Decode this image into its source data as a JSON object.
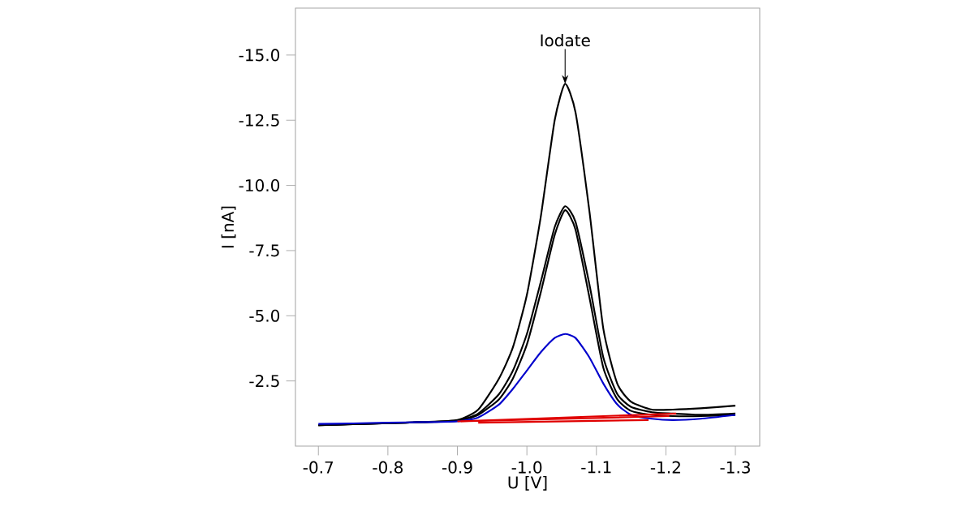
{
  "chart_data": {
    "type": "line",
    "xlabel": "U [V]",
    "ylabel": "I [nA]",
    "annotations": [
      {
        "text": "Iodate",
        "x": -1.055,
        "y": -13.9
      }
    ],
    "x": [
      -0.7,
      -0.75,
      -0.8,
      -0.85,
      -0.9,
      -0.93,
      -0.96,
      -0.98,
      -1.0,
      -1.02,
      -1.04,
      -1.055,
      -1.07,
      -1.09,
      -1.11,
      -1.13,
      -1.15,
      -1.18,
      -1.21,
      -1.25,
      -1.3
    ],
    "series": [
      {
        "color": "#000000",
        "values": [
          -0.8,
          -0.85,
          -0.88,
          -0.92,
          -1.0,
          -1.4,
          -2.6,
          -3.8,
          -5.8,
          -8.8,
          -12.5,
          -13.9,
          -12.8,
          -9.0,
          -4.5,
          -2.4,
          -1.7,
          -1.4,
          -1.4,
          -1.45,
          -1.55
        ]
      },
      {
        "color": "#000000",
        "values": [
          -0.8,
          -0.84,
          -0.88,
          -0.92,
          -0.98,
          -1.25,
          -2.0,
          -2.9,
          -4.3,
          -6.3,
          -8.4,
          -9.2,
          -8.6,
          -6.2,
          -3.4,
          -2.0,
          -1.5,
          -1.3,
          -1.25,
          -1.2,
          -1.25
        ]
      },
      {
        "color": "#000000",
        "values": [
          -0.8,
          -0.84,
          -0.88,
          -0.92,
          -0.97,
          -1.2,
          -1.8,
          -2.6,
          -3.9,
          -5.9,
          -8.1,
          -9.05,
          -8.3,
          -5.7,
          -3.0,
          -1.8,
          -1.35,
          -1.2,
          -1.15,
          -1.15,
          -1.2
        ]
      },
      {
        "color": "#0000cc",
        "values": [
          -0.85,
          -0.87,
          -0.9,
          -0.92,
          -0.95,
          -1.1,
          -1.6,
          -2.2,
          -2.9,
          -3.6,
          -4.15,
          -4.3,
          -4.15,
          -3.4,
          -2.4,
          -1.6,
          -1.2,
          -1.05,
          -1.0,
          -1.05,
          -1.2
        ]
      },
      {
        "color": "#e00000",
        "x": [
          -0.9,
          -1.215
        ],
        "values": [
          -0.95,
          -1.25
        ]
      },
      {
        "color": "#e00000",
        "x": [
          -0.905,
          -1.205
        ],
        "values": [
          -0.95,
          -1.15
        ]
      },
      {
        "color": "#e00000",
        "x": [
          -0.93,
          -1.175
        ],
        "values": [
          -0.9,
          -1.0
        ]
      }
    ],
    "xlim": [
      -0.667,
      -1.335
    ],
    "ylim": [
      0,
      -16.8
    ],
    "xticks": [
      -0.7,
      -0.8,
      -0.9,
      {
        "value": -1.0,
        "label": "-1.0"
      },
      -1.1,
      -1.2,
      -1.3
    ],
    "yticks": [
      -2.5,
      {
        "value": -5.0,
        "label": "-5.0"
      },
      -7.5,
      {
        "value": -10.0,
        "label": "-10.0"
      },
      -12.5,
      {
        "value": -15.0,
        "label": "-15.0"
      }
    ],
    "grid": false
  }
}
